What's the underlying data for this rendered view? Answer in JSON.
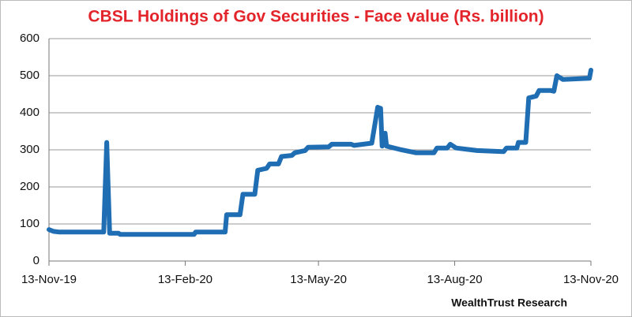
{
  "chart_data": {
    "type": "line",
    "title": "CBSL Holdings of Gov Securities - Face value (Rs. billion)",
    "source": "WealthTrust Research",
    "color": "#1f6db3",
    "x": [
      "2019-11-13",
      "2019-11-16",
      "2019-11-20",
      "2019-12-20",
      "2019-12-22",
      "2019-12-24",
      "2019-12-30",
      "2019-12-31",
      "2020-02-19",
      "2020-02-20",
      "2020-03-11",
      "2020-03-12",
      "2020-03-21",
      "2020-03-23",
      "2020-03-31",
      "2020-04-02",
      "2020-04-08",
      "2020-04-10",
      "2020-04-16",
      "2020-04-18",
      "2020-04-25",
      "2020-04-27",
      "2020-05-04",
      "2020-05-06",
      "2020-05-20",
      "2020-05-22",
      "2020-06-04",
      "2020-06-06",
      "2020-06-18",
      "2020-06-22",
      "2020-06-24",
      "2020-06-25",
      "2020-06-27",
      "2020-06-28",
      "2020-07-08",
      "2020-07-18",
      "2020-07-30",
      "2020-08-01",
      "2020-08-08",
      "2020-08-10",
      "2020-08-14",
      "2020-08-28",
      "2020-09-15",
      "2020-09-17",
      "2020-09-24",
      "2020-09-25",
      "2020-09-30",
      "2020-10-02",
      "2020-10-07",
      "2020-10-09",
      "2020-10-17",
      "2020-10-19",
      "2020-10-21",
      "2020-10-25",
      "2020-11-12",
      "2020-11-13"
    ],
    "values": [
      85,
      80,
      78,
      78,
      320,
      75,
      75,
      72,
      72,
      78,
      78,
      125,
      125,
      180,
      180,
      245,
      250,
      262,
      262,
      282,
      285,
      292,
      298,
      307,
      308,
      315,
      315,
      312,
      318,
      415,
      412,
      310,
      345,
      310,
      300,
      292,
      292,
      305,
      305,
      315,
      305,
      298,
      295,
      305,
      305,
      320,
      320,
      440,
      445,
      460,
      460,
      458,
      500,
      490,
      493,
      515
    ],
    "xlim": [
      "2019-11-13",
      "2020-11-13"
    ],
    "xticks": [
      {
        "value": "2019-11-13",
        "label": "13-Nov-19"
      },
      {
        "value": "2020-02-13",
        "label": "13-Feb-20"
      },
      {
        "value": "2020-05-13",
        "label": "13-May-20"
      },
      {
        "value": "2020-08-13",
        "label": "13-Aug-20"
      },
      {
        "value": "2020-11-13",
        "label": "13-Nov-20"
      }
    ],
    "ylim": [
      0,
      600
    ],
    "yticks": [
      0,
      100,
      200,
      300,
      400,
      500,
      600
    ],
    "grid": true
  }
}
